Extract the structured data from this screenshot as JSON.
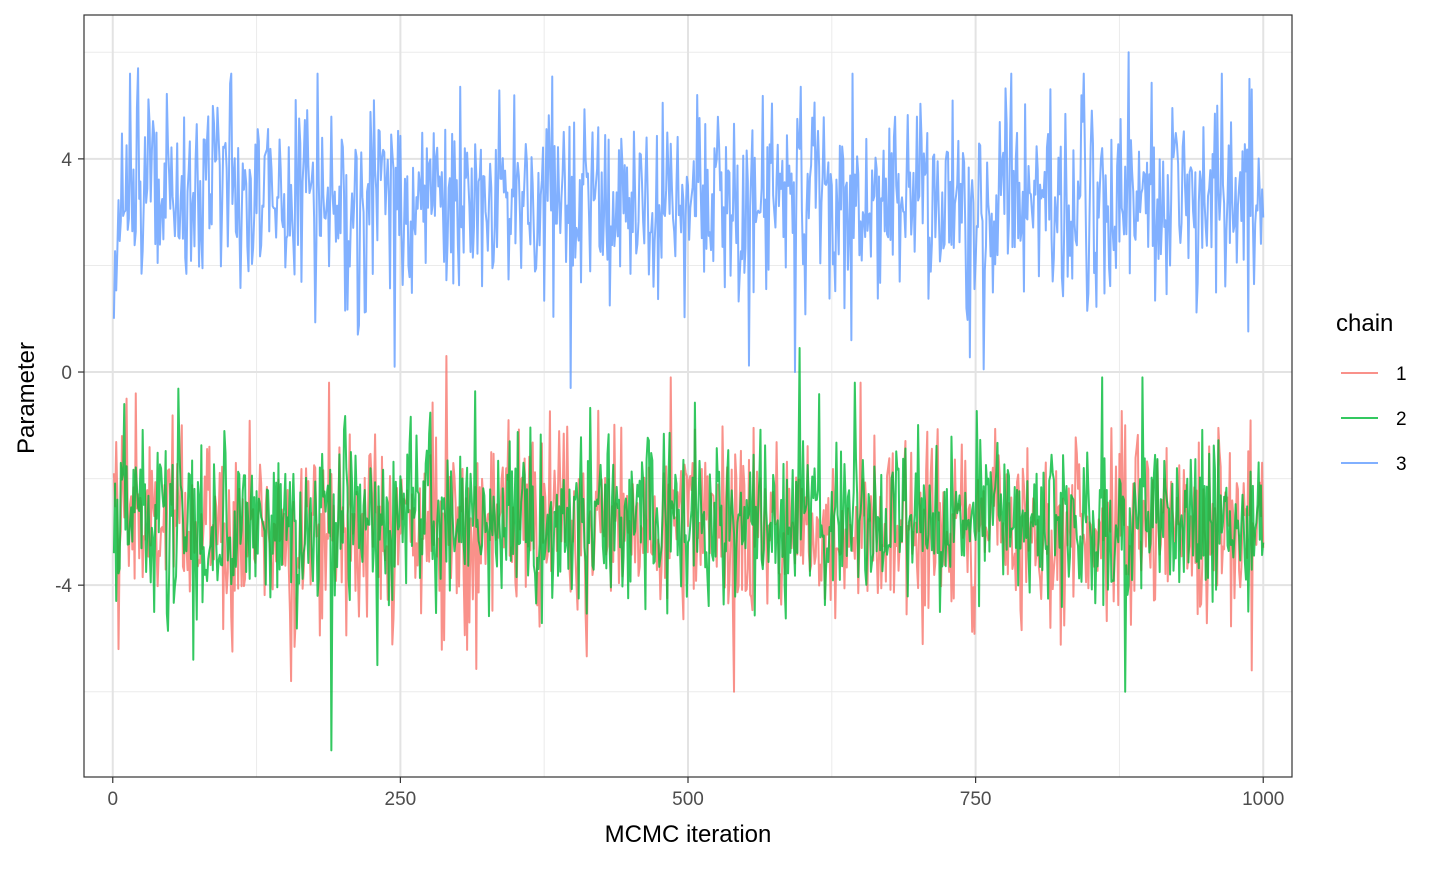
{
  "chart_data": {
    "type": "line",
    "title": "",
    "xlabel": "MCMC iteration",
    "ylabel": "Parameter",
    "xlim": [
      -25,
      1025
    ],
    "ylim": [
      -7.6,
      6.7
    ],
    "x_ticks": [
      0,
      250,
      500,
      750,
      1000
    ],
    "x_tick_labels": [
      "0",
      "250",
      "500",
      "750",
      "1000"
    ],
    "y_ticks": [
      -4,
      0,
      4
    ],
    "y_tick_labels": [
      "-4",
      "0",
      "4"
    ],
    "grid": true,
    "theme": "bw",
    "legend": {
      "title": "chain",
      "position": "right"
    },
    "n_iterations": 1000,
    "series": [
      {
        "name": "1",
        "color": "#F8766D",
        "mean": -2.9,
        "sd": 0.85,
        "range": [
          -6.0,
          0.3
        ],
        "trace_sample": [
          [
            1,
            -1.9
          ],
          [
            5,
            -5.2
          ],
          [
            8,
            -1.2
          ],
          [
            12,
            -0.5
          ],
          [
            20,
            -0.4
          ],
          [
            60,
            -1.0
          ],
          [
            155,
            -5.8
          ],
          [
            188,
            -0.2
          ],
          [
            290,
            0.3
          ],
          [
            485,
            -0.1
          ],
          [
            540,
            -6.0
          ],
          [
            650,
            -0.2
          ],
          [
            990,
            -5.6
          ],
          [
            1000,
            -3.3
          ]
        ]
      },
      {
        "name": "2",
        "color": "#00BA38",
        "mean": -2.8,
        "sd": 0.8,
        "range": [
          -7.1,
          0.45
        ],
        "trace_sample": [
          [
            1,
            -3.4
          ],
          [
            10,
            -0.6
          ],
          [
            70,
            -5.4
          ],
          [
            190,
            -7.1
          ],
          [
            230,
            -5.5
          ],
          [
            597,
            0.45
          ],
          [
            645,
            -0.2
          ],
          [
            860,
            -0.1
          ],
          [
            880,
            -6.0
          ],
          [
            895,
            -0.1
          ],
          [
            1000,
            -3.2
          ]
        ]
      },
      {
        "name": "3",
        "color": "#619CFF",
        "mean": 3.2,
        "sd": 0.95,
        "range": [
          -0.3,
          6.0
        ],
        "trace_sample": [
          [
            1,
            1.0
          ],
          [
            15,
            5.6
          ],
          [
            22,
            5.7
          ],
          [
            245,
            0.1
          ],
          [
            398,
            -0.3
          ],
          [
            593,
            0.0
          ],
          [
            757,
            0.05
          ],
          [
            883,
            6.0
          ],
          [
            1000,
            2.9
          ]
        ]
      }
    ]
  }
}
